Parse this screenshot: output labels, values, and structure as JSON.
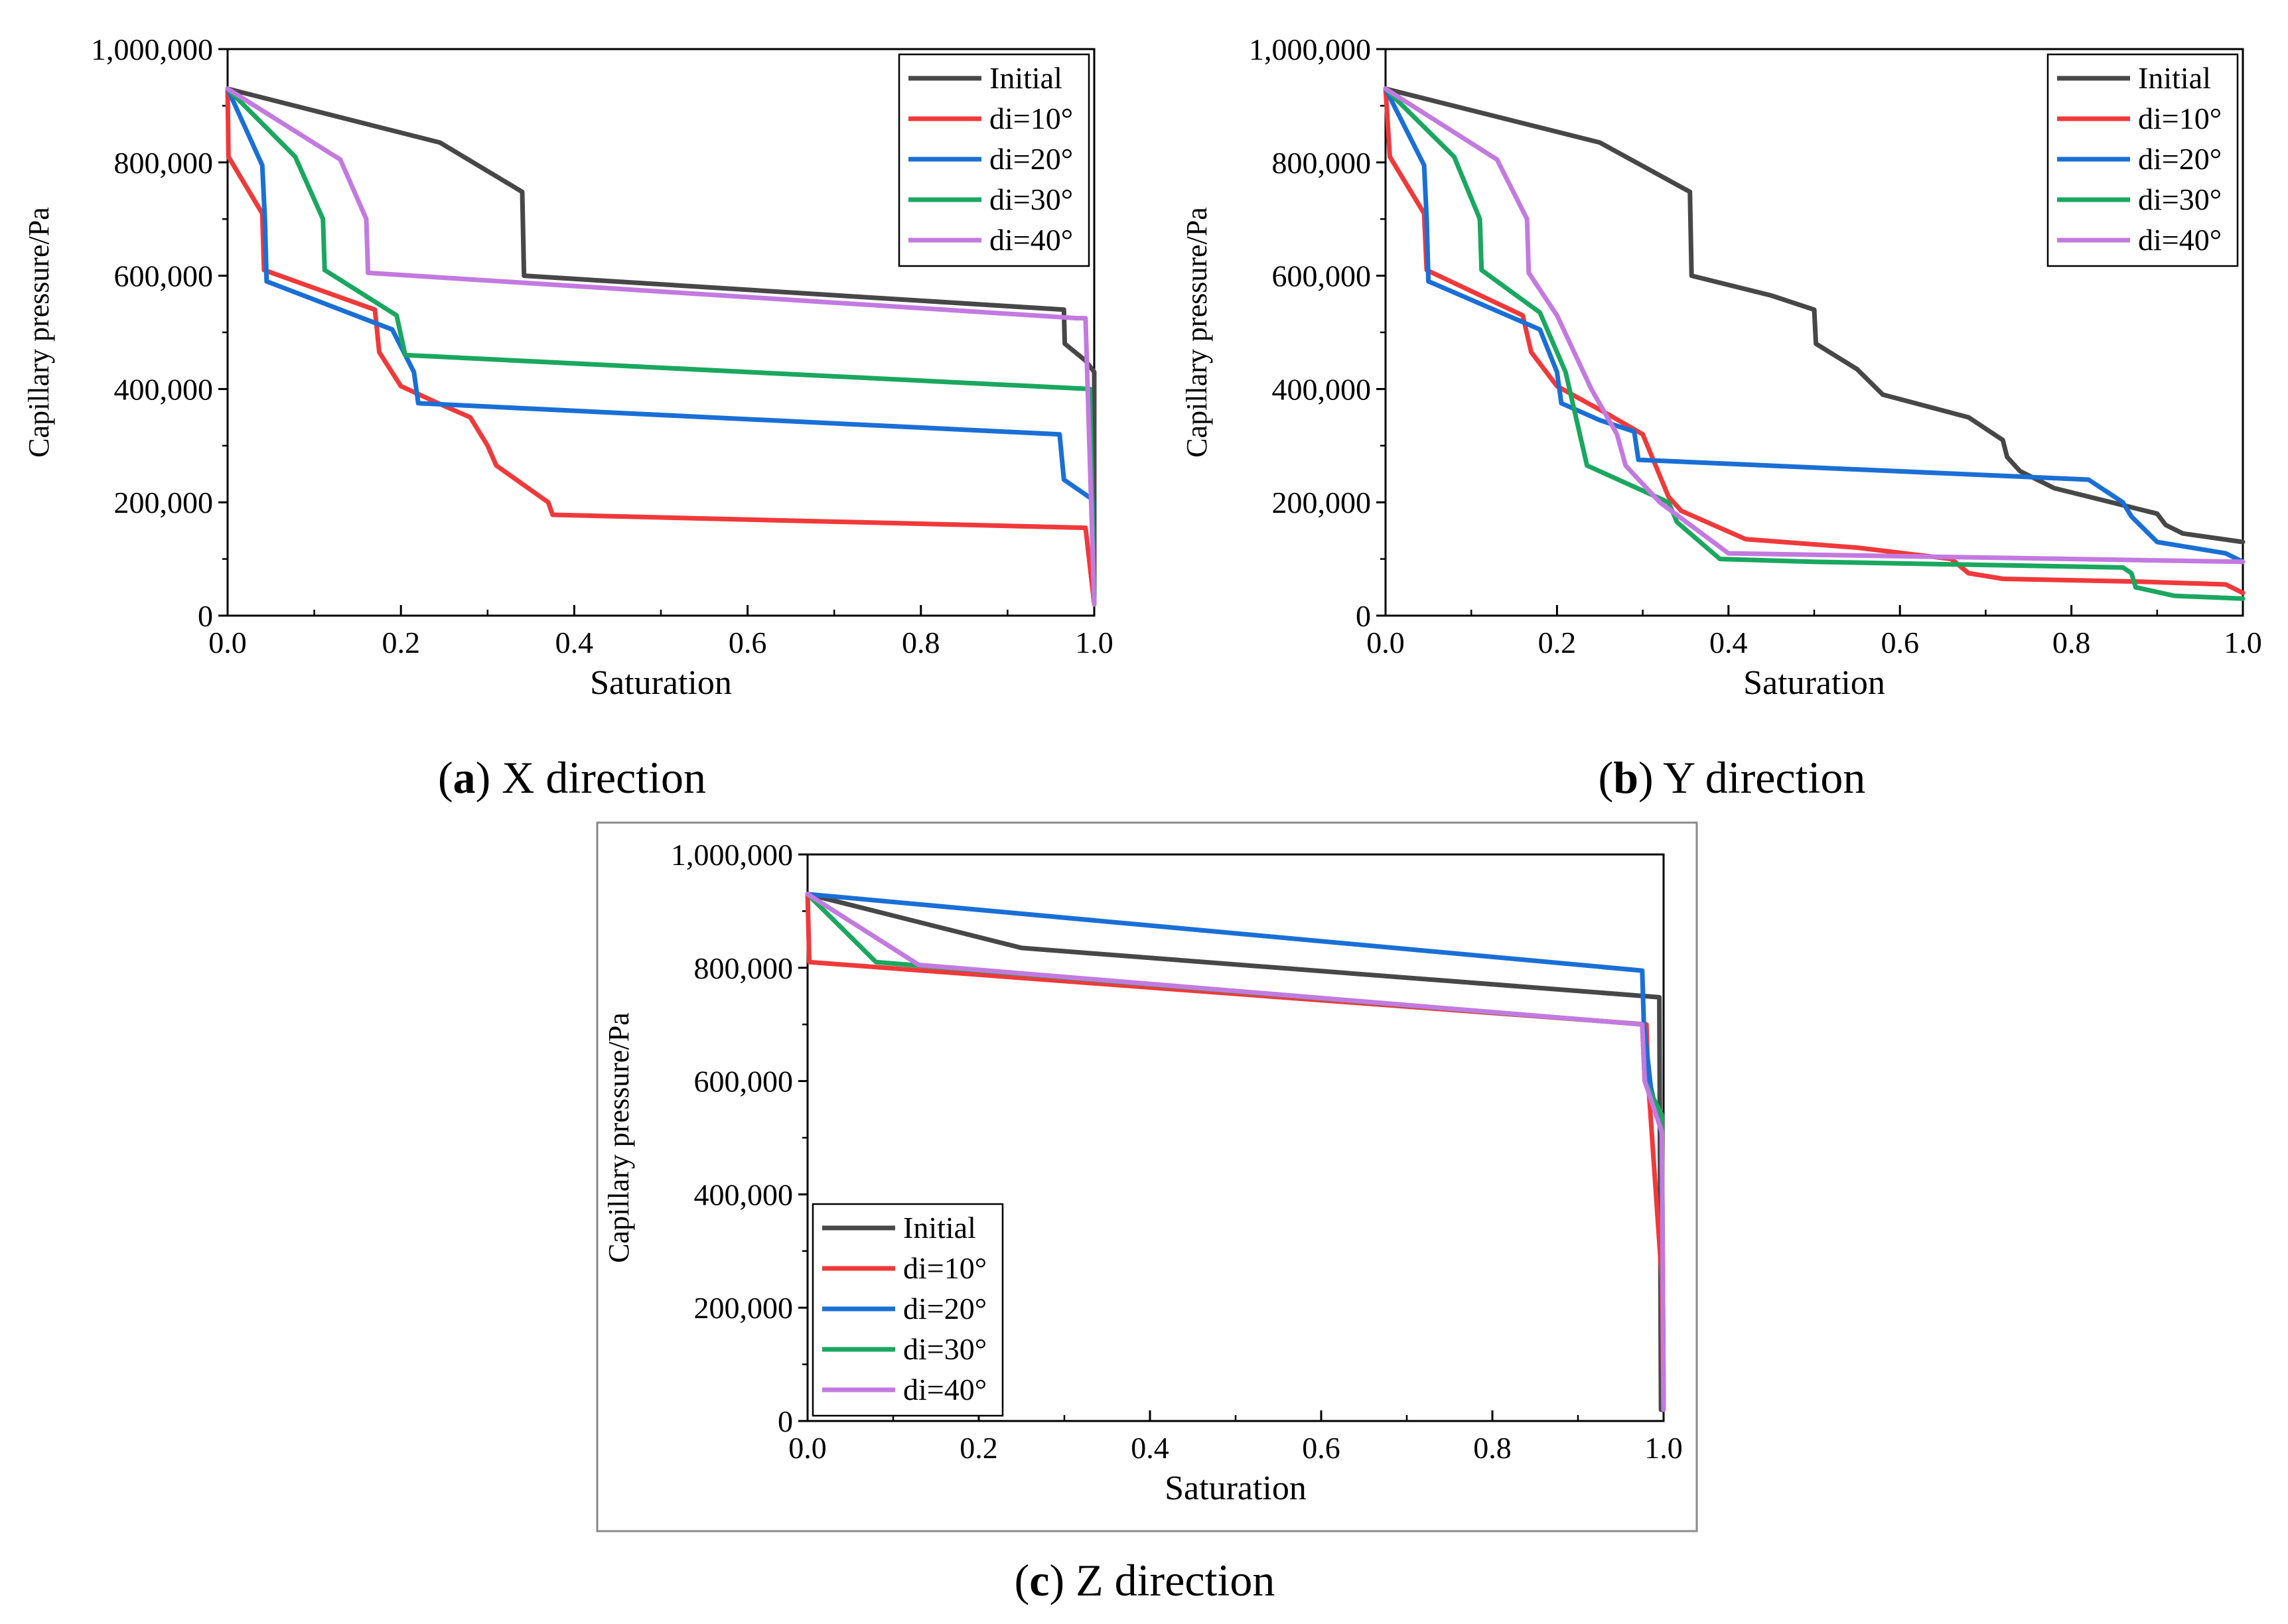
{
  "series_styles": {
    "Initial": "#474747",
    "di=10°": "#f0393a",
    "di=20°": "#1a6fd6",
    "di=30°": "#1aa75f",
    "di=40°": "#c37ae0"
  },
  "chart_data": [
    {
      "id": "a",
      "type": "line",
      "caption": {
        "letter": "a",
        "text": "X direction"
      },
      "xlabel": "Saturation",
      "ylabel": "Capillary pressure/Pa",
      "xlim": [
        0,
        1
      ],
      "ylim": [
        0,
        1000000
      ],
      "xticks": [
        "0.0",
        "0.2",
        "0.4",
        "0.6",
        "0.8",
        "1.0"
      ],
      "yticks": [
        "0",
        "200,000",
        "400,000",
        "600,000",
        "800,000",
        "1,000,000"
      ],
      "legend": "top-right",
      "series": [
        {
          "name": "Initial",
          "x": [
            0,
            0.245,
            0.34,
            0.342,
            0.965,
            0.966,
            0.99,
            1.0,
            1.0
          ],
          "y": [
            930000,
            835000,
            748000,
            600000,
            540000,
            480000,
            450000,
            430000,
            20000
          ]
        },
        {
          "name": "di=10°",
          "x": [
            0,
            0.001,
            0.04,
            0.042,
            0.17,
            0.175,
            0.2,
            0.25,
            0.28,
            0.3,
            0.31,
            0.37,
            0.375,
            0.99,
            1.0
          ],
          "y": [
            930000,
            810000,
            710000,
            610000,
            540000,
            465000,
            405000,
            370000,
            350000,
            300000,
            265000,
            200000,
            178000,
            155000,
            20000
          ]
        },
        {
          "name": "di=20°",
          "x": [
            0,
            0.04,
            0.043,
            0.045,
            0.19,
            0.215,
            0.22,
            0.96,
            0.965,
            0.998,
            1.0
          ],
          "y": [
            930000,
            795000,
            700000,
            590000,
            505000,
            430000,
            375000,
            320000,
            240000,
            205000,
            20000
          ]
        },
        {
          "name": "di=30°",
          "x": [
            0,
            0.078,
            0.11,
            0.112,
            0.195,
            0.205,
            0.995,
            1.0
          ],
          "y": [
            930000,
            810000,
            700000,
            610000,
            530000,
            460000,
            400000,
            20000
          ]
        },
        {
          "name": "di=40°",
          "x": [
            0,
            0.13,
            0.16,
            0.162,
            0.98,
            0.99,
            1.0
          ],
          "y": [
            930000,
            805000,
            700000,
            605000,
            525000,
            525000,
            20000
          ]
        }
      ]
    },
    {
      "id": "b",
      "type": "line",
      "caption": {
        "letter": "b",
        "text": "Y direction"
      },
      "xlabel": "Saturation",
      "ylabel": "Capillary pressure/Pa",
      "xlim": [
        0,
        1
      ],
      "ylim": [
        0,
        1000000
      ],
      "xticks": [
        "0.0",
        "0.2",
        "0.4",
        "0.6",
        "0.8",
        "1.0"
      ],
      "yticks": [
        "0",
        "200,000",
        "400,000",
        "600,000",
        "800,000",
        "1,000,000"
      ],
      "legend": "top-right",
      "series": [
        {
          "name": "Initial",
          "x": [
            0,
            0.25,
            0.355,
            0.357,
            0.45,
            0.5,
            0.502,
            0.55,
            0.58,
            0.68,
            0.72,
            0.725,
            0.74,
            0.78,
            0.9,
            0.91,
            0.93,
            1.0
          ],
          "y": [
            930000,
            835000,
            748000,
            600000,
            565000,
            540000,
            480000,
            435000,
            390000,
            350000,
            310000,
            280000,
            255000,
            225000,
            180000,
            160000,
            145000,
            130000
          ]
        },
        {
          "name": "di=10°",
          "x": [
            0,
            0.005,
            0.045,
            0.048,
            0.16,
            0.17,
            0.2,
            0.26,
            0.3,
            0.33,
            0.345,
            0.42,
            0.55,
            0.66,
            0.68,
            0.72,
            0.88,
            0.98,
            1.0
          ],
          "y": [
            930000,
            810000,
            710000,
            610000,
            530000,
            465000,
            405000,
            355000,
            320000,
            210000,
            185000,
            135000,
            120000,
            100000,
            75000,
            65000,
            60000,
            55000,
            40000
          ]
        },
        {
          "name": "di=20°",
          "x": [
            0,
            0.045,
            0.048,
            0.05,
            0.18,
            0.2,
            0.205,
            0.25,
            0.29,
            0.295,
            0.82,
            0.86,
            0.87,
            0.9,
            0.98,
            1.0
          ],
          "y": [
            930000,
            795000,
            700000,
            590000,
            505000,
            430000,
            375000,
            345000,
            325000,
            275000,
            240000,
            200000,
            175000,
            130000,
            110000,
            95000
          ]
        },
        {
          "name": "di=30°",
          "x": [
            0,
            0.08,
            0.11,
            0.112,
            0.18,
            0.21,
            0.235,
            0.33,
            0.34,
            0.39,
            0.5,
            0.86,
            0.87,
            0.875,
            0.92,
            1.0
          ],
          "y": [
            930000,
            810000,
            700000,
            610000,
            535000,
            430000,
            265000,
            200000,
            165000,
            100000,
            95000,
            85000,
            75000,
            50000,
            35000,
            30000
          ]
        },
        {
          "name": "di=40°",
          "x": [
            0,
            0.13,
            0.165,
            0.167,
            0.2,
            0.24,
            0.27,
            0.28,
            0.32,
            0.4,
            1.0
          ],
          "y": [
            930000,
            805000,
            700000,
            605000,
            530000,
            400000,
            320000,
            265000,
            200000,
            110000,
            95000
          ]
        }
      ]
    },
    {
      "id": "c",
      "type": "line",
      "caption": {
        "letter": "c",
        "text": "Z direction"
      },
      "xlabel": "Saturation",
      "ylabel": "Capillary pressure/Pa",
      "xlim": [
        0,
        1
      ],
      "ylim": [
        0,
        1000000
      ],
      "xticks": [
        "0.0",
        "0.2",
        "0.4",
        "0.6",
        "0.8",
        "1.0"
      ],
      "yticks": [
        "0",
        "200,000",
        "400,000",
        "600,000",
        "800,000",
        "1,000,000"
      ],
      "legend": "bottom-left",
      "series": [
        {
          "name": "Initial",
          "x": [
            0,
            0.25,
            0.995,
            0.997,
            1.0
          ],
          "y": [
            930000,
            835000,
            748000,
            20000,
            20000
          ]
        },
        {
          "name": "di=10°",
          "x": [
            0,
            0.002,
            0.98,
            0.982,
            0.998,
            1.0
          ],
          "y": [
            930000,
            810000,
            700000,
            600000,
            250000,
            20000
          ]
        },
        {
          "name": "di=20°",
          "x": [
            0,
            0.975,
            0.977,
            0.985,
            0.998,
            1.0
          ],
          "y": [
            930000,
            795000,
            700000,
            590000,
            505000,
            20000
          ]
        },
        {
          "name": "di=30°",
          "x": [
            0,
            0.08,
            0.975,
            0.978,
            0.998,
            1.0
          ],
          "y": [
            930000,
            810000,
            700000,
            600000,
            540000,
            20000
          ]
        },
        {
          "name": "di=40°",
          "x": [
            0,
            0.13,
            0.975,
            0.978,
            0.998,
            1.0
          ],
          "y": [
            930000,
            805000,
            700000,
            600000,
            510000,
            20000
          ]
        }
      ]
    }
  ]
}
